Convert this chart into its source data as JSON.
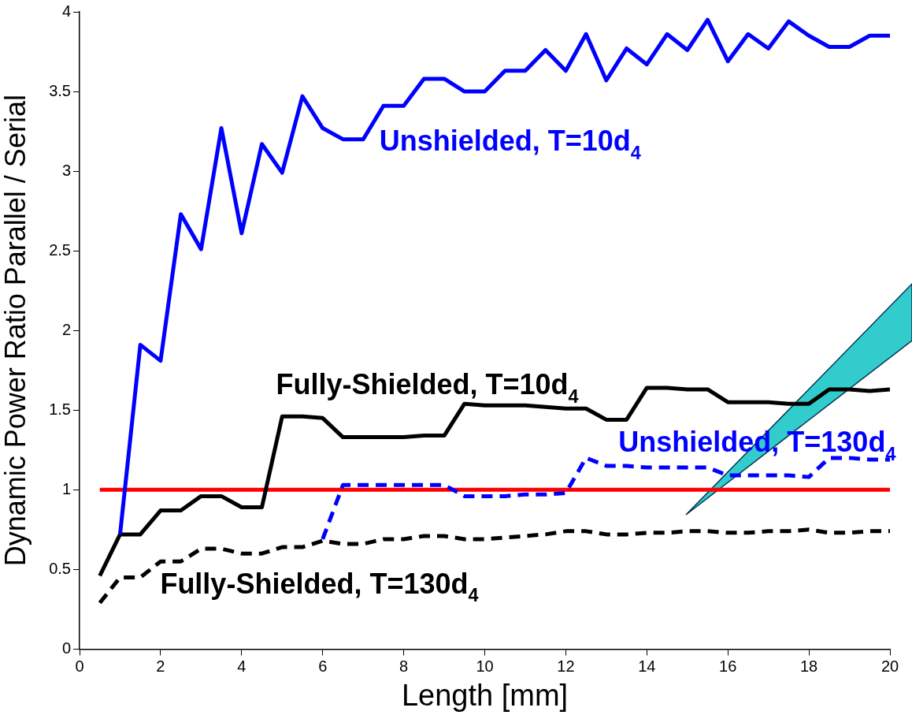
{
  "chart_data": {
    "type": "line",
    "xlabel": "Length [mm]",
    "ylabel": "Dynamic Power Ratio Parallel / Serial",
    "x": [
      0.5,
      1,
      1.5,
      2,
      2.5,
      3,
      3.5,
      4,
      4.5,
      5,
      5.5,
      6,
      6.5,
      7,
      7.5,
      8,
      8.5,
      9,
      9.5,
      10,
      10.5,
      11,
      11.5,
      12,
      12.5,
      13,
      13.5,
      14,
      14.5,
      15,
      15.5,
      16,
      16.5,
      17,
      17.5,
      18,
      18.5,
      19,
      19.5,
      20
    ],
    "series": [
      {
        "name": "Unshielded, T=10d$_{4}$",
        "color": "#0000ff",
        "values": [
          null,
          0.72,
          1.91,
          1.81,
          2.73,
          2.51,
          3.27,
          2.61,
          3.17,
          2.99,
          3.47,
          3.27,
          3.2,
          3.2,
          3.41,
          3.41,
          3.58,
          3.58,
          3.5,
          3.5,
          3.63,
          3.63,
          3.76,
          3.63,
          3.86,
          3.57,
          3.77,
          3.67,
          3.86,
          3.76,
          3.95,
          3.69,
          3.86,
          3.77,
          3.94,
          3.85,
          3.78,
          3.78,
          3.85,
          3.85
        ]
      },
      {
        "name": "Fully-Shielded, T=10d$_{4}$",
        "color": "#000000",
        "values": [
          0.46,
          0.72,
          0.72,
          0.87,
          0.87,
          0.96,
          0.96,
          0.89,
          0.89,
          1.46,
          1.46,
          1.45,
          1.33,
          1.33,
          1.33,
          1.33,
          1.34,
          1.34,
          1.54,
          1.53,
          1.53,
          1.53,
          1.52,
          1.51,
          1.51,
          1.44,
          1.44,
          1.64,
          1.64,
          1.63,
          1.63,
          1.55,
          1.55,
          1.55,
          1.54,
          1.54,
          1.63,
          1.63,
          1.62,
          1.63
        ]
      },
      {
        "name": "Unshielded, T=130d$_{4}$",
        "color": "#0000ff",
        "line_style": "dashed",
        "values": [
          null,
          null,
          null,
          null,
          null,
          null,
          null,
          null,
          null,
          null,
          null,
          0.69,
          1.03,
          1.03,
          1.03,
          1.03,
          1.03,
          1.03,
          0.96,
          0.96,
          0.96,
          0.97,
          0.97,
          0.98,
          1.2,
          1.15,
          1.15,
          1.14,
          1.14,
          1.14,
          1.14,
          1.09,
          1.09,
          1.09,
          1.09,
          1.08,
          1.2,
          1.2,
          1.19,
          1.19
        ]
      },
      {
        "name": "Fully-Shielded, T=130d$_{4}$",
        "color": "#000000",
        "line_style": "dashed",
        "values": [
          0.29,
          0.45,
          0.45,
          0.55,
          0.55,
          0.63,
          0.63,
          0.6,
          0.6,
          0.64,
          0.64,
          0.68,
          0.66,
          0.66,
          0.69,
          0.69,
          0.71,
          0.71,
          0.69,
          0.69,
          0.7,
          0.71,
          0.72,
          0.74,
          0.74,
          0.72,
          0.72,
          0.73,
          0.73,
          0.74,
          0.74,
          0.73,
          0.73,
          0.74,
          0.74,
          0.75,
          0.73,
          0.73,
          0.74,
          0.74
        ]
      },
      {
        "color": "#ff0000",
        "x": [
          0.5,
          20
        ],
        "values": [
          1,
          1
        ]
      }
    ],
    "xlim": [
      0,
      20
    ],
    "xticks": [
      0,
      2,
      4,
      6,
      8,
      10,
      12,
      14,
      16,
      18,
      20
    ],
    "ylim": [
      0,
      4
    ],
    "yticks": [
      0,
      0.5,
      1,
      1.5,
      2,
      2.5,
      3,
      3.5,
      4
    ],
    "grid": false,
    "legend": false,
    "marker": "none"
  }
}
